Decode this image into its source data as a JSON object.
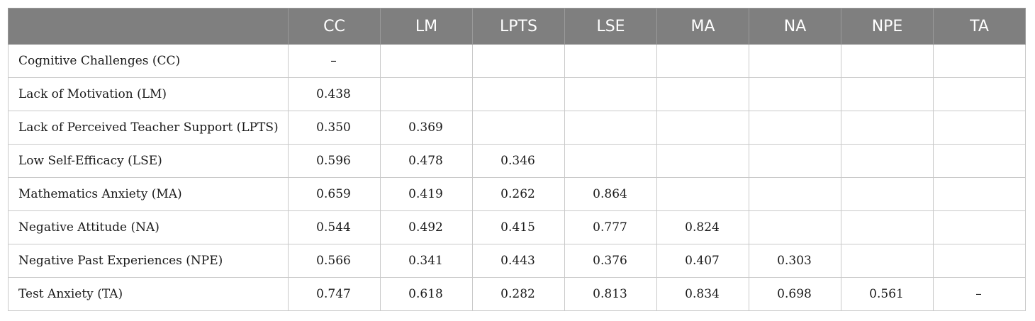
{
  "table": {
    "corner": "",
    "columns": [
      "CC",
      "LM",
      "LPTS",
      "LSE",
      "MA",
      "NA",
      "NPE",
      "TA"
    ],
    "rows": [
      {
        "label": "Cognitive Challenges (CC)",
        "cells": [
          "–",
          "",
          "",
          "",
          "",
          "",
          "",
          ""
        ]
      },
      {
        "label": "Lack of Motivation (LM)",
        "cells": [
          "0.438",
          "",
          "",
          "",
          "",
          "",
          "",
          ""
        ]
      },
      {
        "label": "Lack of Perceived Teacher Support (LPTS)",
        "cells": [
          "0.350",
          "0.369",
          "",
          "",
          "",
          "",
          "",
          ""
        ]
      },
      {
        "label": "Low Self-Efficacy (LSE)",
        "cells": [
          "0.596",
          "0.478",
          "0.346",
          "",
          "",
          "",
          "",
          ""
        ]
      },
      {
        "label": "Mathematics Anxiety (MA)",
        "cells": [
          "0.659",
          "0.419",
          "0.262",
          "0.864",
          "",
          "",
          "",
          ""
        ]
      },
      {
        "label": "Negative Attitude (NA)",
        "cells": [
          "0.544",
          "0.492",
          "0.415",
          "0.777",
          "0.824",
          "",
          "",
          ""
        ]
      },
      {
        "label": "Negative Past Experiences (NPE)",
        "cells": [
          "0.566",
          "0.341",
          "0.443",
          "0.376",
          "0.407",
          "0.303",
          "",
          ""
        ]
      },
      {
        "label": "Test Anxiety (TA)",
        "cells": [
          "0.747",
          "0.618",
          "0.282",
          "0.813",
          "0.834",
          "0.698",
          "0.561",
          "–"
        ]
      }
    ]
  }
}
